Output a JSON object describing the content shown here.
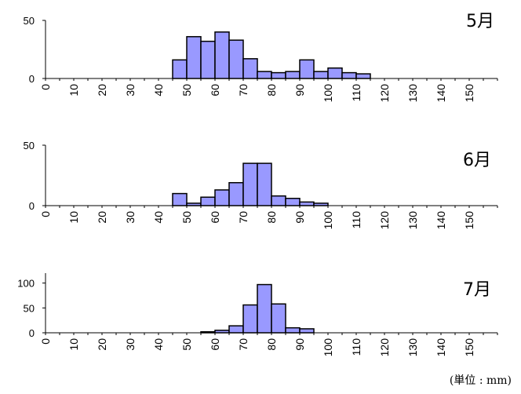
{
  "unit_note": "(単位 : mm)",
  "chart_data": [
    {
      "type": "bar",
      "title": "5月",
      "x_ticks": [
        "0",
        "10",
        "20",
        "30",
        "40",
        "50",
        "60",
        "70",
        "80",
        "90",
        "100",
        "110",
        "120",
        "130",
        "140",
        "150"
      ],
      "y_ticks": [
        "0",
        "50"
      ],
      "ylim": [
        0,
        50
      ],
      "bin_width": 5,
      "bin_starts": [
        45,
        50,
        55,
        60,
        65,
        70,
        75,
        80,
        85,
        90,
        95,
        100,
        105,
        110
      ],
      "values": [
        16,
        36,
        32,
        40,
        33,
        17,
        6,
        5,
        6,
        16,
        6,
        9,
        5,
        4
      ]
    },
    {
      "type": "bar",
      "title": "6月",
      "x_ticks": [
        "0",
        "10",
        "20",
        "30",
        "40",
        "50",
        "60",
        "70",
        "80",
        "90",
        "100",
        "110",
        "120",
        "130",
        "140",
        "150"
      ],
      "y_ticks": [
        "0",
        "50"
      ],
      "ylim": [
        0,
        50
      ],
      "bin_width": 5,
      "bin_starts": [
        45,
        50,
        55,
        60,
        65,
        70,
        75,
        80,
        85,
        90,
        95
      ],
      "values": [
        10,
        2,
        7,
        13,
        19,
        35,
        35,
        8,
        6,
        3,
        2
      ]
    },
    {
      "type": "bar",
      "title": "7月",
      "x_ticks": [
        "0",
        "10",
        "20",
        "30",
        "40",
        "50",
        "60",
        "70",
        "80",
        "90",
        "100",
        "110",
        "120",
        "130",
        "140",
        "150"
      ],
      "y_ticks": [
        "0",
        "50",
        "100"
      ],
      "ylim": [
        0,
        120
      ],
      "bin_width": 5,
      "bin_starts": [
        55,
        60,
        65,
        70,
        75,
        80,
        85,
        90
      ],
      "values": [
        2,
        5,
        14,
        56,
        97,
        58,
        10,
        8
      ]
    }
  ]
}
